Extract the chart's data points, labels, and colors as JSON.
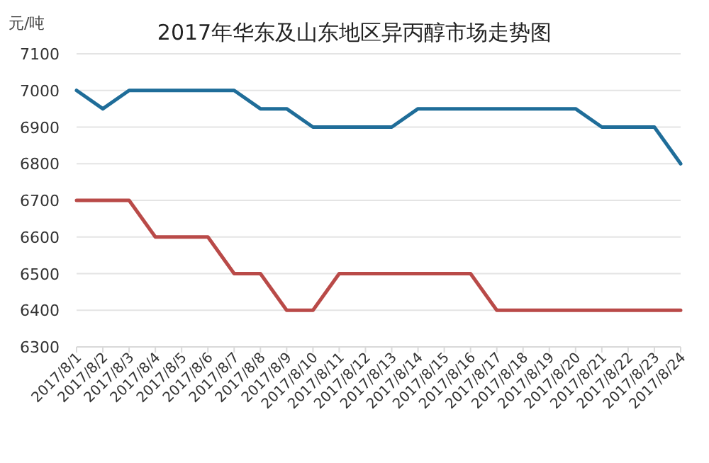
{
  "chart_data": {
    "type": "line",
    "title": "2017年华东及山东地区异丙醇市场走势图",
    "ylabel": "元/吨",
    "categories": [
      "2017/8/1",
      "2017/8/2",
      "2017/8/3",
      "2017/8/4",
      "2017/8/5",
      "2017/8/6",
      "2017/8/7",
      "2017/8/8",
      "2017/8/9",
      "2017/8/10",
      "2017/8/11",
      "2017/8/12",
      "2017/8/13",
      "2017/8/14",
      "2017/8/15",
      "2017/8/16",
      "2017/8/17",
      "2017/8/18",
      "2017/8/19",
      "2017/8/20",
      "2017/8/21",
      "2017/8/22",
      "2017/8/23",
      "2017/8/24"
    ],
    "series": [
      {
        "color": "#1f6d99",
        "values": [
          7000,
          6950,
          7000,
          7000,
          7000,
          7000,
          7000,
          6950,
          6950,
          6900,
          6900,
          6900,
          6900,
          6950,
          6950,
          6950,
          6950,
          6950,
          6950,
          6950,
          6900,
          6900,
          6900,
          6800
        ]
      },
      {
        "color": "#b94a48",
        "values": [
          6700,
          6700,
          6700,
          6600,
          6600,
          6600,
          6500,
          6500,
          6400,
          6400,
          6500,
          6500,
          6500,
          6500,
          6500,
          6500,
          6400,
          6400,
          6400,
          6400,
          6400,
          6400,
          6400,
          6400
        ]
      }
    ],
    "ylim": [
      6300,
      7100
    ],
    "yticks": [
      6300,
      6400,
      6500,
      6600,
      6700,
      6800,
      6900,
      7000,
      7100
    ],
    "grid": "y",
    "marker": "none",
    "line_style": "solid"
  }
}
